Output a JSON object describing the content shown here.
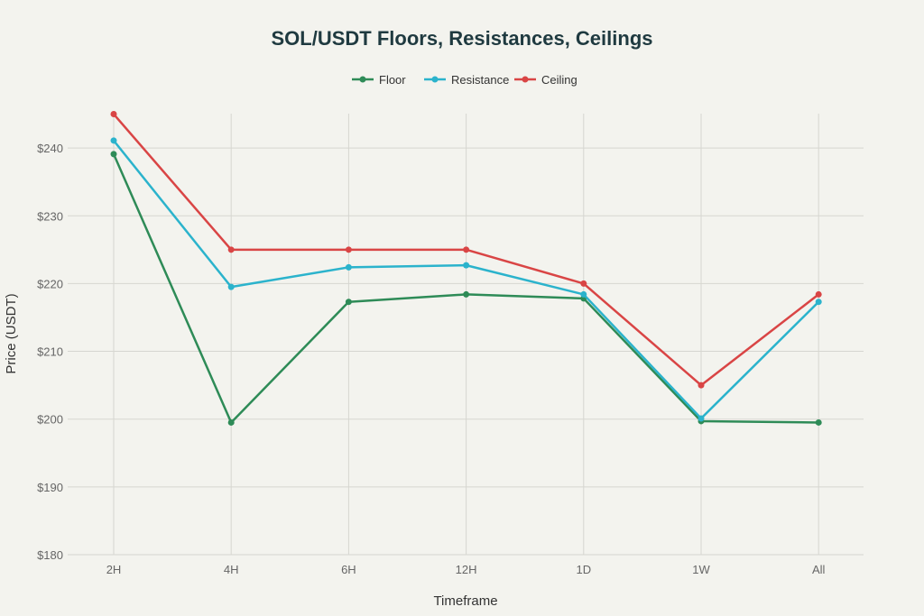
{
  "chart_data": {
    "type": "line",
    "title": "SOL/USDT Floors, Resistances, Ceilings",
    "xlabel": "Timeframe",
    "ylabel": "Price (USDT)",
    "categories": [
      "2H",
      "4H",
      "6H",
      "12H",
      "1D",
      "1W",
      "All"
    ],
    "ylim": [
      180,
      245
    ],
    "yticks": [
      180,
      190,
      200,
      210,
      220,
      230,
      240
    ],
    "ytick_labels": [
      "$180",
      "$190",
      "$200",
      "$210",
      "$220",
      "$230",
      "$240"
    ],
    "grid": true,
    "legend_position": "top-center",
    "series": [
      {
        "name": "Floor",
        "color": "#2e8b57",
        "values": [
          239.1,
          199.5,
          217.3,
          218.4,
          217.8,
          199.7,
          199.5
        ]
      },
      {
        "name": "Resistance",
        "color": "#2bb3cc",
        "values": [
          241.1,
          219.5,
          222.4,
          222.7,
          218.4,
          200.1,
          217.3
        ]
      },
      {
        "name": "Ceiling",
        "color": "#d94545",
        "values": [
          245.0,
          225.0,
          225.0,
          225.0,
          220.0,
          205.0,
          218.4
        ]
      }
    ]
  }
}
